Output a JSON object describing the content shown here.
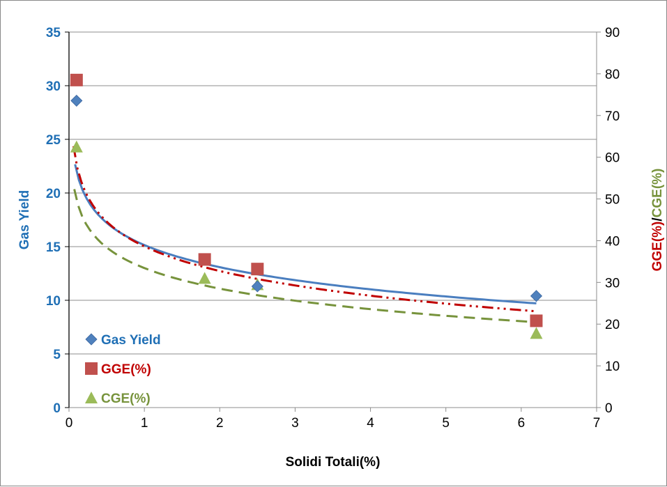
{
  "chart_data": {
    "type": "scatter",
    "title": "",
    "xlabel": "Solidi Totali(%)",
    "ylabel_left": "Gas Yield",
    "ylabel_right_parts": [
      "GGE(%)",
      "/",
      "CGE(%)"
    ],
    "xlim": [
      0,
      7
    ],
    "ylim_left": [
      0,
      35
    ],
    "ylim_right": [
      0,
      90
    ],
    "x_ticks": [
      "0",
      "1",
      "2",
      "3",
      "4",
      "5",
      "6",
      "7"
    ],
    "y_left_ticks": [
      "0",
      "5",
      "10",
      "15",
      "20",
      "25",
      "30",
      "35"
    ],
    "y_right_ticks": [
      "0",
      "10",
      "20",
      "30",
      "40",
      "50",
      "60",
      "70",
      "80",
      "90"
    ],
    "grid": "horizontal",
    "legend_position": "bottom-left",
    "series": [
      {
        "name": "Gas Yield",
        "axis": "left",
        "marker": "diamond",
        "color": "#4f81bd",
        "points": [
          [
            0.1,
            28.6
          ],
          [
            2.5,
            11.3
          ],
          [
            6.2,
            10.4
          ]
        ],
        "trendline": {
          "type": "log",
          "a": 15.15,
          "b": -2.98,
          "x_range": [
            0.08,
            6.2
          ],
          "style": "solid",
          "color": "#4a7ebf"
        }
      },
      {
        "name": "GGE(%)",
        "axis": "right",
        "marker": "square",
        "color": "#c0504d",
        "points": [
          [
            0.1,
            78.5
          ],
          [
            1.8,
            35.5
          ],
          [
            2.5,
            33.2
          ],
          [
            6.2,
            20.8
          ]
        ],
        "trendline": {
          "type": "log",
          "a": 38.64,
          "b": -8.53,
          "x_range": [
            0.06,
            6.2
          ],
          "style": "dash-dot-dot",
          "color": "#c00000"
        }
      },
      {
        "name": "CGE(%)",
        "axis": "right",
        "marker": "triangle",
        "color": "#9bbb59",
        "points": [
          [
            0.1,
            62.5
          ],
          [
            1.8,
            31.0
          ],
          [
            2.5,
            29.5
          ],
          [
            6.2,
            17.8
          ]
        ],
        "trendline": {
          "type": "log",
          "a": 33.44,
          "b": -7.11,
          "x_range": [
            0.07,
            6.2
          ],
          "style": "dashed",
          "color": "#77933c"
        }
      }
    ]
  }
}
